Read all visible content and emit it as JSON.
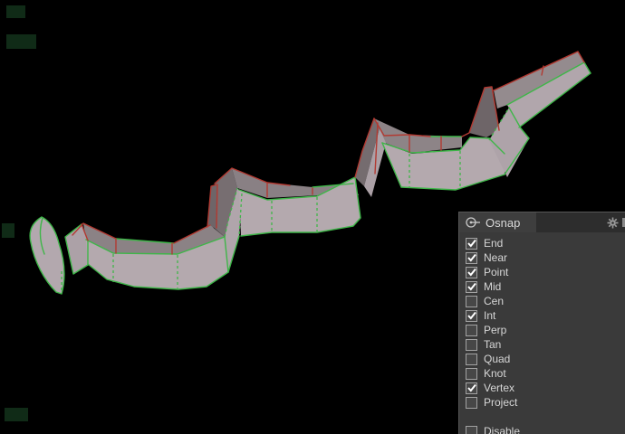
{
  "viewport": {
    "background": "#000000",
    "object_colors": {
      "surface_front": "#b3a8ae",
      "surface_top": "#8b8285",
      "edge_green": "#3fb649",
      "edge_red": "#b23a32"
    }
  },
  "osnap_panel": {
    "tab_label": "Osnap",
    "icons": {
      "tab": "osnap-target-icon",
      "settings": "gear-icon"
    },
    "options": [
      {
        "label": "End",
        "checked": true
      },
      {
        "label": "Near",
        "checked": true
      },
      {
        "label": "Point",
        "checked": true
      },
      {
        "label": "Mid",
        "checked": true
      },
      {
        "label": "Cen",
        "checked": false
      },
      {
        "label": "Int",
        "checked": true
      },
      {
        "label": "Perp",
        "checked": false
      },
      {
        "label": "Tan",
        "checked": false
      },
      {
        "label": "Quad",
        "checked": false
      },
      {
        "label": "Knot",
        "checked": false
      },
      {
        "label": "Vertex",
        "checked": true
      },
      {
        "label": "Project",
        "checked": false
      }
    ],
    "disable_option": {
      "label": "Disable",
      "checked": false
    },
    "colors": {
      "panel_bg": "#3a3a3a",
      "header_bg": "#2d2d2d",
      "tab_bg": "#3e3e3e",
      "text": "#d6d6d6"
    }
  }
}
